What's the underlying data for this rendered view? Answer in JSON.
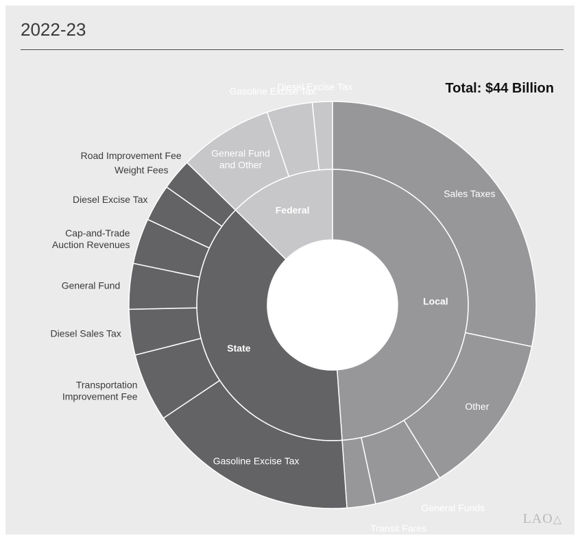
{
  "header": {
    "year": "2022-23"
  },
  "logo": {
    "text": "LAO"
  },
  "chart_data": {
    "type": "sunburst",
    "title": "2022-23",
    "annotation": "Total: $44 Billion",
    "total": 44,
    "colors": {
      "Local": "#97979a",
      "State": "#636365",
      "Federal": "#c7c7c9"
    },
    "groups": [
      {
        "name": "Local",
        "value": 21.6,
        "children": [
          {
            "name": "Sales Taxes",
            "value": 12.5
          },
          {
            "name": "Other",
            "value": 5.7
          },
          {
            "name": "General Funds",
            "value": 2.4
          },
          {
            "name": "Transit Fares",
            "value": 1.0
          }
        ]
      },
      {
        "name": "State",
        "value": 17.0,
        "children": [
          {
            "name": "Gasoline Excise Tax",
            "value": 7.4
          },
          {
            "name": "Transportation Improvement Fee",
            "value": 2.4
          },
          {
            "name": "Diesel Sales Tax",
            "value": 1.6
          },
          {
            "name": "General Fund",
            "value": 1.6
          },
          {
            "name": "Cap-and-Trade Auction Revenues",
            "value": 1.6
          },
          {
            "name": "Diesel Excise Tax",
            "value": 1.3
          },
          {
            "name": "Weight Fees",
            "value": 1.1
          },
          {
            "name": "Road Improvement Fee",
            "value": 0.2
          }
        ]
      },
      {
        "name": "Federal",
        "value": 5.6,
        "children": [
          {
            "name": "General Fund and Other",
            "value": 3.3
          },
          {
            "name": "Gasoline Excise Tax",
            "value": 1.6
          },
          {
            "name": "Diesel Excise Tax",
            "value": 0.7
          }
        ]
      }
    ]
  }
}
